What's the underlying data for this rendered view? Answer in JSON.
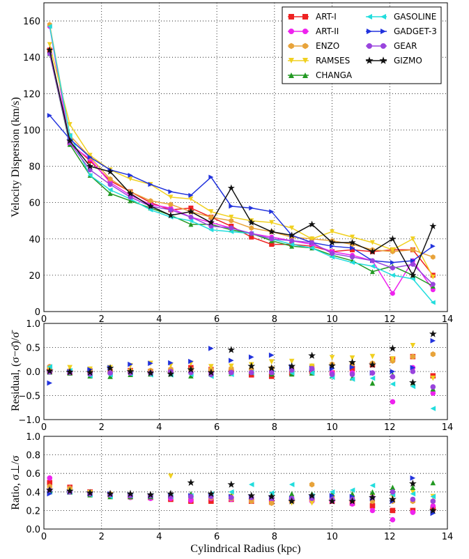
{
  "chart_data": [
    {
      "type": "line",
      "ylabel": "Velocity Dispersion (km/s)",
      "x": [
        0.2,
        0.9,
        1.6,
        2.3,
        3.0,
        3.7,
        4.4,
        5.1,
        5.8,
        6.5,
        7.2,
        7.9,
        8.6,
        9.3,
        10.0,
        10.7,
        11.4,
        12.1,
        12.8,
        13.5
      ],
      "xlim": [
        0,
        14
      ],
      "xticks": [
        0,
        2,
        4,
        6,
        8,
        10,
        12,
        14
      ],
      "ylim": [
        0,
        170
      ],
      "yticks": [
        0,
        20,
        40,
        60,
        80,
        100,
        120,
        140,
        160
      ],
      "grid": true,
      "legend": "upper right",
      "series": [
        {
          "name": "ART-I",
          "color": "#ee2222",
          "marker": "s",
          "values": [
            144,
            93,
            83,
            72,
            66,
            60,
            56,
            57,
            52,
            47,
            41,
            37,
            37,
            36,
            33,
            34,
            33,
            34,
            34,
            20
          ]
        },
        {
          "name": "ART-II",
          "color": "#ee22ee",
          "marker": "o",
          "values": [
            157,
            92,
            84,
            71,
            64,
            59,
            57,
            52,
            49,
            46,
            43,
            41,
            39,
            37,
            33,
            31,
            28,
            10,
            28,
            12
          ]
        },
        {
          "name": "ENZO",
          "color": "#e8a33a",
          "marker": "h",
          "values": [
            158,
            97,
            85,
            73,
            66,
            61,
            59,
            55,
            52,
            50,
            46,
            44,
            41,
            40,
            39,
            37,
            34,
            33,
            34,
            30
          ]
        },
        {
          "name": "RAMSES",
          "color": "#f0d020",
          "marker": "v",
          "values": [
            147,
            103,
            86,
            78,
            73,
            70,
            63,
            62,
            55,
            52,
            50,
            49,
            46,
            40,
            44,
            41,
            38,
            34,
            40,
            19
          ]
        },
        {
          "name": "CHANGA",
          "color": "#229922",
          "marker": "^",
          "values": [
            142,
            92,
            75,
            65,
            61,
            57,
            53,
            48,
            48,
            45,
            43,
            39,
            36,
            35,
            31,
            28,
            22,
            25,
            20,
            14
          ]
        },
        {
          "name": "GASOLINE",
          "color": "#22dddd",
          "marker": "<",
          "values": [
            157,
            97,
            75,
            67,
            62,
            56,
            52,
            50,
            45,
            44,
            43,
            40,
            37,
            35,
            30,
            27,
            25,
            20,
            18,
            5
          ]
        },
        {
          "name": "GADGET-3",
          "color": "#2233dd",
          "marker": ">",
          "values": [
            108,
            95,
            85,
            78,
            75,
            70,
            66,
            64,
            74,
            58,
            57,
            55,
            42,
            38,
            36,
            35,
            28,
            27,
            28,
            36
          ]
        },
        {
          "name": "GEAR",
          "color": "#9944dd",
          "marker": "o",
          "values": [
            142,
            93,
            78,
            70,
            63,
            58,
            56,
            52,
            47,
            46,
            43,
            40,
            39,
            38,
            32,
            30,
            28,
            24,
            26,
            15
          ]
        },
        {
          "name": "GIZMO",
          "color": "#111111",
          "marker": "*",
          "values": [
            144,
            94,
            80,
            77,
            65,
            58,
            53,
            55,
            49,
            68,
            49,
            44,
            42,
            48,
            38,
            38,
            33,
            40,
            20,
            47
          ]
        }
      ]
    },
    {
      "type": "scatter",
      "ylabel": "Residual, (σ−σ̄)/σ̄",
      "x": [
        0.2,
        0.9,
        1.6,
        2.3,
        3.0,
        3.7,
        4.4,
        5.1,
        5.8,
        6.5,
        7.2,
        7.9,
        8.6,
        9.3,
        10.0,
        10.7,
        11.4,
        12.1,
        12.8,
        13.5
      ],
      "xlim": [
        0,
        14
      ],
      "xticks": [
        0,
        2,
        4,
        6,
        8,
        10,
        12,
        14
      ],
      "ylim": [
        -1,
        1
      ],
      "yticks": [
        {
          "value": -1,
          "label": "−1.0"
        },
        {
          "value": -0.5,
          "label": "−0.5"
        },
        {
          "value": 0,
          "label": "0.0"
        },
        0.5,
        {
          "value": 1,
          "label": "1.0"
        }
      ],
      "grid": true,
      "series": [
        {
          "color": "#ee2222",
          "marker": "s",
          "values": [
            0.01,
            -0.02,
            0.01,
            0,
            0.02,
            0,
            0,
            0.08,
            0.04,
            0,
            -0.07,
            -0.1,
            -0.03,
            0,
            -0.03,
            0.06,
            0.14,
            0.26,
            0.31,
            -0.09
          ]
        },
        {
          "color": "#ee22ee",
          "marker": "o",
          "values": [
            0.1,
            -0.03,
            0.02,
            -0.01,
            -0.02,
            -0.02,
            0.02,
            -0.02,
            -0.02,
            -0.02,
            -0.02,
            0,
            0.03,
            0.03,
            -0.03,
            -0.03,
            -0.03,
            -0.63,
            0.08,
            -0.45
          ]
        },
        {
          "color": "#e8a33a",
          "marker": "h",
          "values": [
            0.1,
            0.02,
            0.04,
            0.01,
            0.02,
            0.02,
            0.05,
            0.04,
            0.04,
            0.06,
            0.05,
            0.07,
            0.08,
            0.11,
            0.15,
            0.16,
            0.17,
            0.22,
            0.31,
            0.36
          ]
        },
        {
          "color": "#f0d020",
          "marker": "v",
          "values": [
            0.03,
            0.08,
            0.05,
            0.08,
            0.12,
            0.17,
            0.13,
            0.17,
            0.1,
            0.11,
            0.14,
            0.2,
            0.21,
            0.11,
            0.29,
            0.28,
            0.31,
            0.26,
            0.54,
            -0.14
          ]
        },
        {
          "color": "#229922",
          "marker": "^",
          "values": [
            -0.01,
            -0.03,
            -0.09,
            -0.1,
            -0.06,
            -0.05,
            -0.05,
            -0.09,
            -0.04,
            -0.04,
            -0.02,
            -0.05,
            -0.05,
            -0.03,
            -0.09,
            -0.13,
            -0.24,
            -0.07,
            -0.23,
            -0.36
          ]
        },
        {
          "color": "#22dddd",
          "marker": "<",
          "values": [
            0.1,
            0.02,
            -0.09,
            -0.07,
            -0.05,
            -0.07,
            -0.07,
            -0.06,
            -0.1,
            -0.06,
            -0.02,
            -0.02,
            -0.03,
            -0.03,
            -0.12,
            -0.16,
            -0.14,
            -0.26,
            -0.31,
            -0.77
          ]
        },
        {
          "color": "#2233dd",
          "marker": ">",
          "values": [
            -0.24,
            0,
            0.04,
            0.08,
            0.15,
            0.17,
            0.18,
            0.21,
            0.48,
            0.23,
            0.3,
            0.34,
            0.1,
            0.06,
            0.06,
            0.09,
            -0.03,
            0,
            0.08,
            0.64
          ]
        },
        {
          "color": "#9944dd",
          "marker": "o",
          "values": [
            -0.01,
            -0.02,
            -0.05,
            -0.03,
            -0.03,
            -0.03,
            0,
            -0.02,
            -0.06,
            -0.02,
            -0.02,
            -0.02,
            0.03,
            0.06,
            -0.06,
            -0.06,
            -0.03,
            -0.11,
            0,
            -0.32
          ]
        },
        {
          "color": "#111111",
          "marker": "*",
          "values": [
            0.01,
            -0.01,
            -0.02,
            0.07,
            0,
            -0.03,
            -0.05,
            0.04,
            -0.02,
            0.45,
            0.11,
            0.07,
            0.11,
            0.33,
            0.12,
            0.19,
            0.14,
            0.48,
            -0.23,
            0.78
          ]
        }
      ]
    },
    {
      "type": "scatter",
      "ylabel": "Ratio, σ⊥/σ",
      "xlabel": "Cylindrical Radius (kpc)",
      "x": [
        0.2,
        0.9,
        1.6,
        2.3,
        3.0,
        3.7,
        4.4,
        5.1,
        5.8,
        6.5,
        7.2,
        7.9,
        8.6,
        9.3,
        10.0,
        10.7,
        11.4,
        12.1,
        12.8,
        13.5
      ],
      "xlim": [
        0,
        14
      ],
      "xticks": [
        0,
        2,
        4,
        6,
        8,
        10,
        12,
        14
      ],
      "ylim": [
        0,
        1
      ],
      "yticks": [
        {
          "value": 0,
          "label": "0.0"
        },
        0.2,
        0.4,
        0.6,
        0.8,
        {
          "value": 1,
          "label": "1.0"
        }
      ],
      "grid": true,
      "series": [
        {
          "color": "#ee2222",
          "marker": "s",
          "values": [
            0.5,
            0.45,
            0.4,
            0.37,
            0.35,
            0.34,
            0.32,
            0.3,
            0.3,
            0.32,
            0.3,
            0.29,
            0.31,
            0.32,
            0.3,
            0.28,
            0.25,
            0.2,
            0.2,
            0.22
          ]
        },
        {
          "color": "#ee22ee",
          "marker": "o",
          "values": [
            0.55,
            0.44,
            0.4,
            0.37,
            0.34,
            0.33,
            0.33,
            0.31,
            0.33,
            0.32,
            0.3,
            0.32,
            0.3,
            0.3,
            0.3,
            0.27,
            0.2,
            0.1,
            0.18,
            0.25
          ]
        },
        {
          "color": "#e8a33a",
          "marker": "h",
          "values": [
            0.46,
            0.44,
            0.4,
            0.38,
            0.36,
            0.36,
            0.36,
            0.35,
            0.34,
            0.33,
            0.3,
            0.28,
            0.3,
            0.48,
            0.35,
            0.33,
            0.3,
            0.3,
            0.3,
            0.3
          ]
        },
        {
          "color": "#f0d020",
          "marker": "v",
          "values": [
            0.42,
            0.41,
            0.39,
            0.37,
            0.34,
            0.35,
            0.57,
            0.35,
            0.34,
            0.35,
            0.33,
            0.32,
            0.28,
            0.28,
            0.3,
            0.3,
            0.35,
            0.35,
            0.4,
            0.35
          ]
        },
        {
          "color": "#229922",
          "marker": "^",
          "values": [
            0.42,
            0.4,
            0.37,
            0.35,
            0.35,
            0.35,
            0.36,
            0.38,
            0.38,
            0.36,
            0.36,
            0.37,
            0.38,
            0.38,
            0.38,
            0.38,
            0.4,
            0.45,
            0.45,
            0.5
          ]
        },
        {
          "color": "#22dddd",
          "marker": "<",
          "values": [
            0.4,
            0.4,
            0.37,
            0.35,
            0.36,
            0.36,
            0.35,
            0.36,
            0.38,
            0.4,
            0.48,
            0.39,
            0.48,
            0.36,
            0.4,
            0.42,
            0.47,
            0.37,
            0.38,
            0.35
          ]
        },
        {
          "color": "#2233dd",
          "marker": ">",
          "values": [
            0.38,
            0.4,
            0.38,
            0.38,
            0.37,
            0.36,
            0.36,
            0.36,
            0.36,
            0.35,
            0.35,
            0.34,
            0.33,
            0.35,
            0.36,
            0.35,
            0.33,
            0.3,
            0.55,
            0.17
          ]
        },
        {
          "color": "#9944dd",
          "marker": "o",
          "values": [
            0.42,
            0.4,
            0.38,
            0.37,
            0.36,
            0.36,
            0.35,
            0.35,
            0.35,
            0.34,
            0.34,
            0.33,
            0.33,
            0.33,
            0.32,
            0.32,
            0.34,
            0.4,
            0.32,
            0.3
          ]
        },
        {
          "color": "#111111",
          "marker": "*",
          "values": [
            0.42,
            0.41,
            0.39,
            0.38,
            0.38,
            0.37,
            0.38,
            0.5,
            0.38,
            0.48,
            0.36,
            0.35,
            0.3,
            0.36,
            0.3,
            0.3,
            0.34,
            0.32,
            0.49,
            0.2
          ]
        }
      ]
    }
  ]
}
